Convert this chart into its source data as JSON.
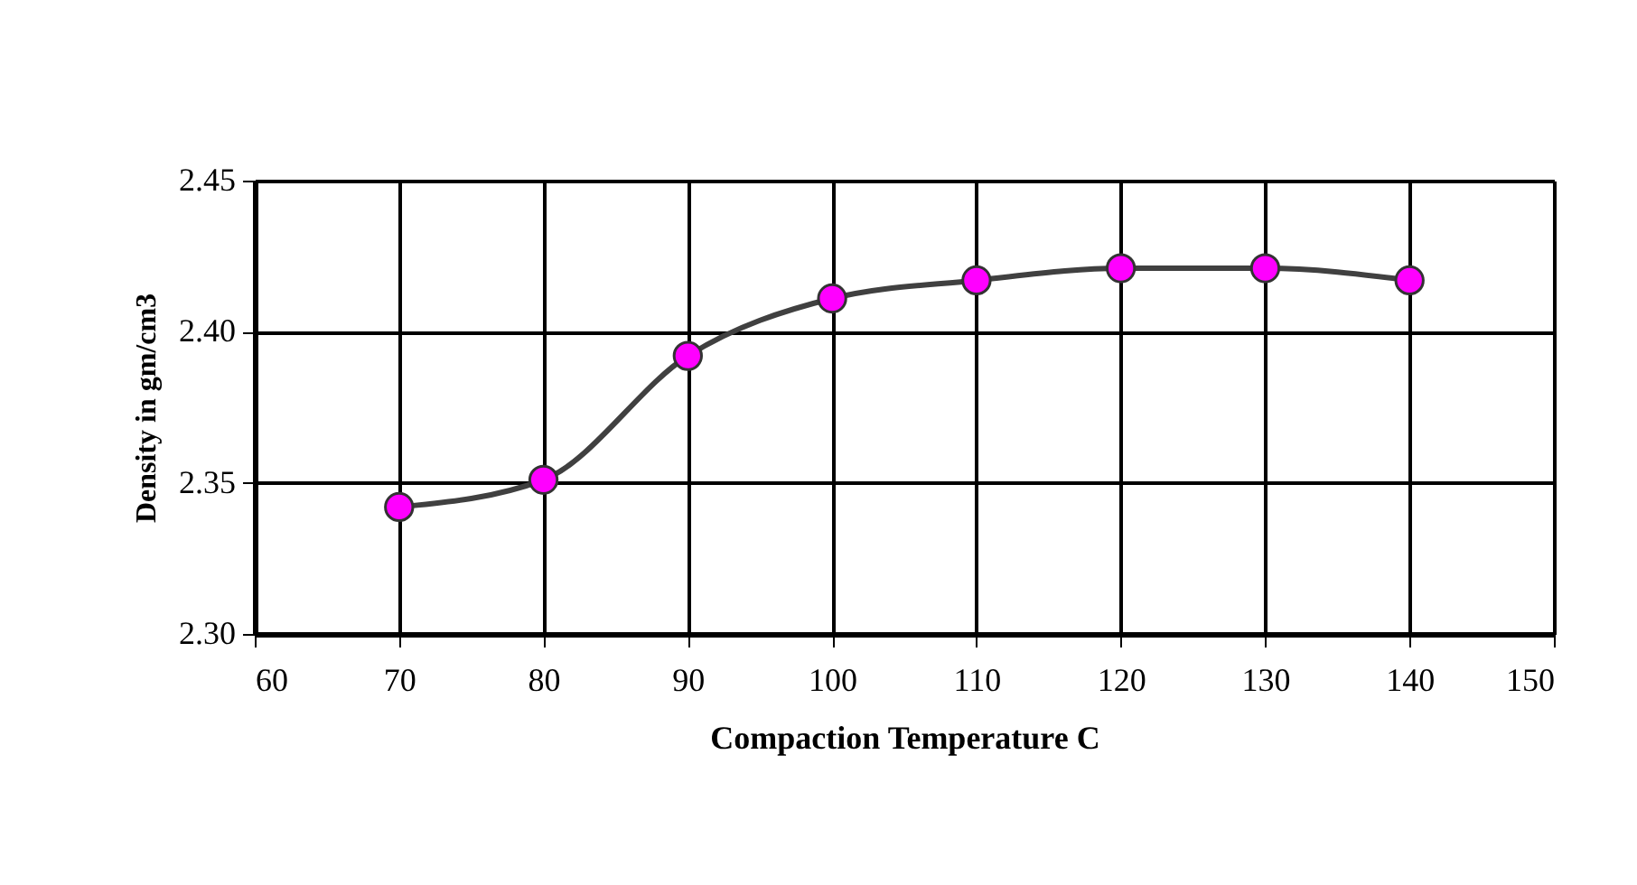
{
  "chart_data": {
    "type": "line",
    "xlabel": "Compaction Temperature C",
    "ylabel": "Density in gm/cm3",
    "x": [
      70,
      80,
      90,
      100,
      110,
      120,
      130,
      140
    ],
    "series": [
      {
        "color": "#ff00ff",
        "values": [
          2.342,
          2.351,
          2.392,
          2.411,
          2.417,
          2.421,
          2.421,
          2.417
        ]
      }
    ],
    "xlim": [
      60,
      150
    ],
    "xticks": [
      60,
      70,
      80,
      90,
      100,
      110,
      120,
      130,
      140,
      150
    ],
    "ylim": [
      2.3,
      2.45
    ],
    "yticks": [
      {
        "value": 2.3,
        "label": "2.30"
      },
      {
        "value": 2.35,
        "label": "2.35"
      },
      {
        "value": 2.4,
        "label": "2.40"
      },
      {
        "value": 2.45,
        "label": "2.45"
      }
    ],
    "grid": true,
    "marker": "circle",
    "line_style": "solid"
  }
}
